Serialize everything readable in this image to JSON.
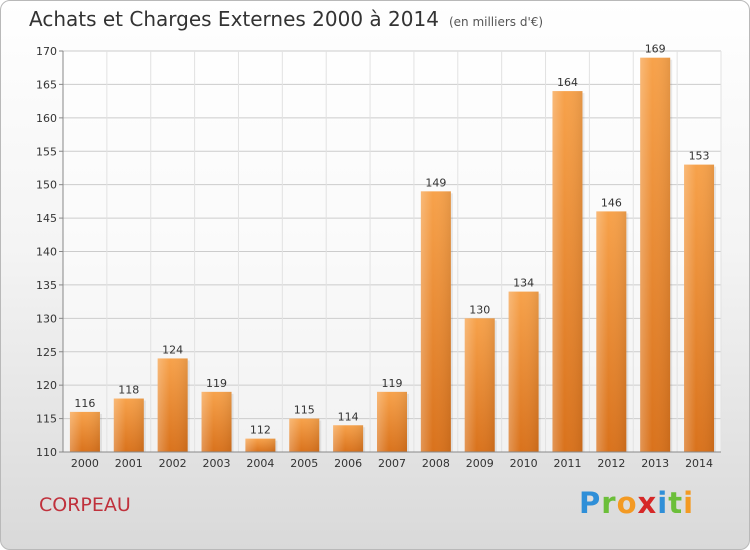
{
  "header": {
    "title": "Achats et Charges Externes 2000 à 2014",
    "unit": "(en milliers d'€)"
  },
  "footer": {
    "city": "CORPEAU",
    "logo_letters": [
      "P",
      "r",
      "o",
      "x",
      "i",
      "t",
      "i"
    ],
    "logo_colors": [
      "#2f8fd8",
      "#6cbf3a",
      "#f39a23",
      "#d62828",
      "#2f8fd8",
      "#6cbf3a",
      "#f39a23"
    ]
  },
  "chart_data": {
    "type": "bar",
    "title": "Achats et Charges Externes 2000 à 2014",
    "categories": [
      "2000",
      "2001",
      "2002",
      "2003",
      "2004",
      "2005",
      "2006",
      "2007",
      "2008",
      "2009",
      "2010",
      "2011",
      "2012",
      "2013",
      "2014"
    ],
    "values": [
      116,
      118,
      124,
      119,
      112,
      115,
      114,
      119,
      149,
      130,
      134,
      164,
      146,
      169,
      153
    ],
    "ylim": [
      110,
      170
    ],
    "yticks": [
      110,
      115,
      120,
      125,
      130,
      135,
      140,
      145,
      150,
      155,
      160,
      165,
      170
    ],
    "grid": true,
    "bar_color": "#f0913a",
    "grid_color": "#cccccc"
  }
}
